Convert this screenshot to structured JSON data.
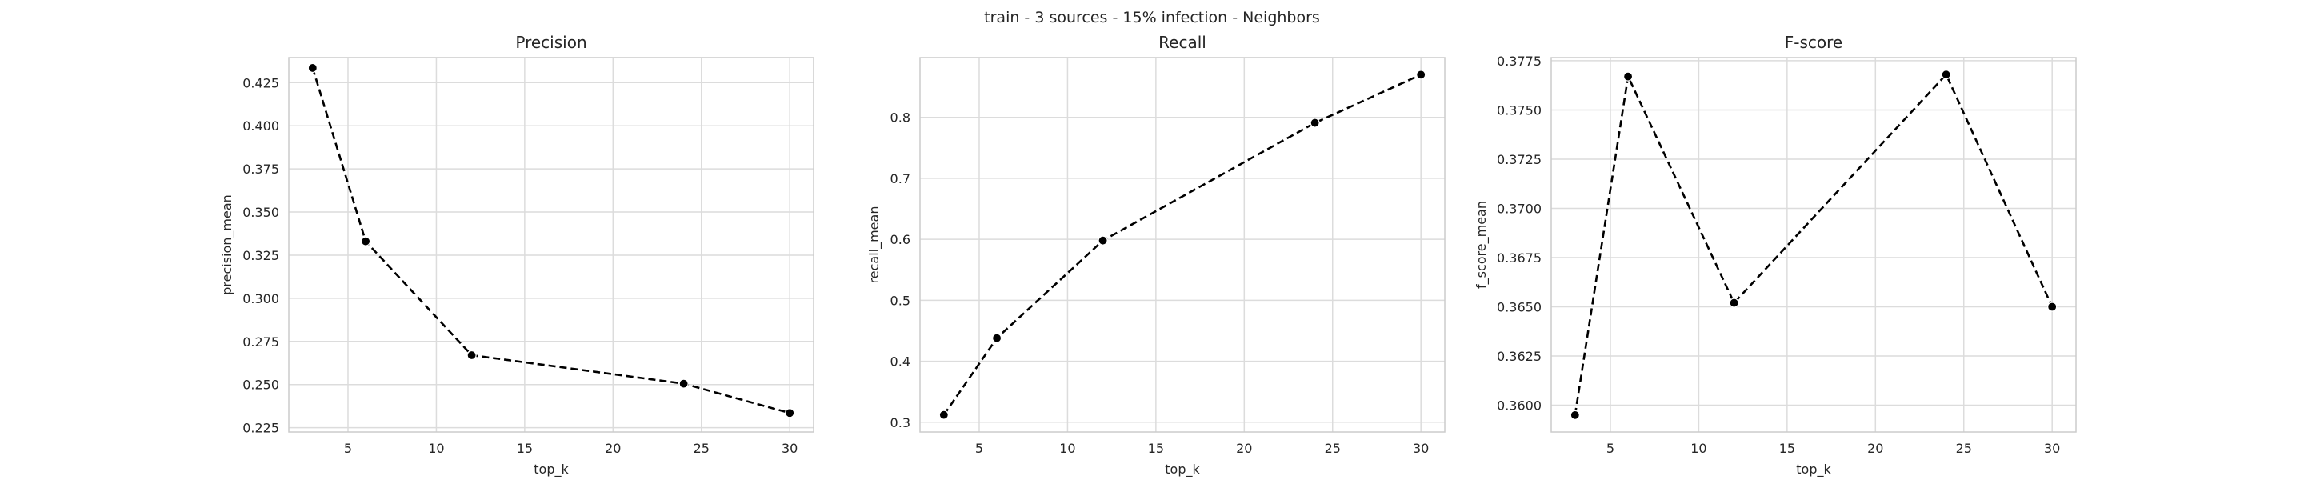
{
  "suptitle": "train - 3 sources - 15% infection - Neighbors",
  "chart_data": [
    {
      "type": "line",
      "title": "Precision",
      "xlabel": "top_k",
      "ylabel": "precision_mean",
      "x": [
        3,
        6,
        12,
        24,
        30
      ],
      "values": [
        0.4335,
        0.333,
        0.267,
        0.2505,
        0.2335
      ],
      "xlim": [
        1.65,
        31.35
      ],
      "ylim": [
        0.2225,
        0.4395
      ],
      "xticks": [
        5,
        10,
        15,
        20,
        25,
        30
      ],
      "yticks": [
        0.225,
        0.25,
        0.275,
        0.3,
        0.325,
        0.35,
        0.375,
        0.4,
        0.425
      ],
      "ytick_labels": [
        "0.225",
        "0.250",
        "0.275",
        "0.300",
        "0.325",
        "0.350",
        "0.375",
        "0.400",
        "0.425"
      ],
      "grid": true,
      "line_style": "dashed",
      "marker": "circle",
      "color": "#000000"
    },
    {
      "type": "line",
      "title": "Recall",
      "xlabel": "top_k",
      "ylabel": "recall_mean",
      "x": [
        3,
        6,
        12,
        24,
        30
      ],
      "values": [
        0.312,
        0.438,
        0.598,
        0.791,
        0.87
      ],
      "xlim": [
        1.65,
        31.35
      ],
      "ylim": [
        0.284,
        0.898
      ],
      "xticks": [
        5,
        10,
        15,
        20,
        25,
        30
      ],
      "yticks": [
        0.3,
        0.4,
        0.5,
        0.6,
        0.7,
        0.8
      ],
      "ytick_labels": [
        "0.3",
        "0.4",
        "0.5",
        "0.6",
        "0.7",
        "0.8"
      ],
      "grid": true,
      "line_style": "dashed",
      "marker": "circle",
      "color": "#000000"
    },
    {
      "type": "line",
      "title": "F-score",
      "xlabel": "top_k",
      "ylabel": "f_score_mean",
      "x": [
        3,
        6,
        12,
        24,
        30
      ],
      "values": [
        0.3595,
        0.3767,
        0.3652,
        0.3768,
        0.365
      ],
      "xlim": [
        1.65,
        31.35
      ],
      "ylim": [
        0.35864,
        0.37766
      ],
      "xticks": [
        5,
        10,
        15,
        20,
        25,
        30
      ],
      "yticks": [
        0.36,
        0.3625,
        0.365,
        0.3675,
        0.37,
        0.3725,
        0.375,
        0.3775
      ],
      "ytick_labels": [
        "0.3600",
        "0.3625",
        "0.3650",
        "0.3675",
        "0.3700",
        "0.3725",
        "0.3750",
        "0.3775"
      ],
      "grid": true,
      "line_style": "dashed",
      "marker": "circle",
      "color": "#000000"
    }
  ]
}
